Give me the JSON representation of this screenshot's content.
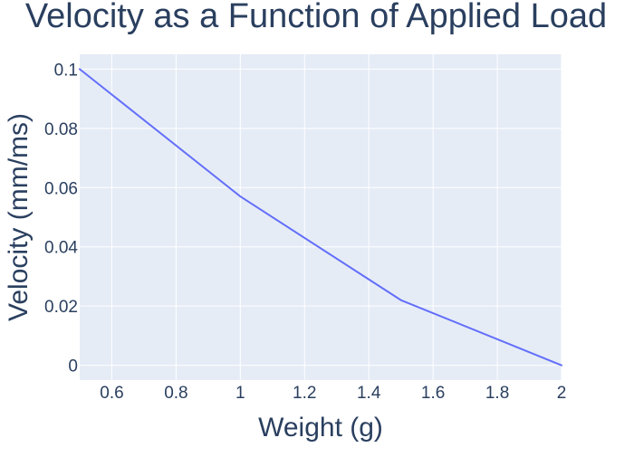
{
  "chart_data": {
    "type": "line",
    "title": "Velocity as a Function of Applied Load",
    "xlabel": "Weight (g)",
    "ylabel": "Velocity (mm/ms)",
    "x": [
      0.5,
      1,
      1.5,
      2
    ],
    "series": [
      {
        "values": [
          0.1,
          0.057,
          0.022,
          0
        ]
      }
    ],
    "xlim": [
      0.5,
      2
    ],
    "ylim": [
      -0.005,
      0.105
    ],
    "xticks": [
      0.6,
      0.8,
      1,
      1.2,
      1.4,
      1.6,
      1.8,
      2
    ],
    "xtick_labels": [
      "0.6",
      "0.8",
      "1",
      "1.2",
      "1.4",
      "1.6",
      "1.8",
      "2"
    ],
    "yticks": [
      0,
      0.02,
      0.04,
      0.06,
      0.08,
      0.1
    ],
    "ytick_labels": [
      "0",
      "0.02",
      "0.04",
      "0.06",
      "0.08",
      "0.1"
    ],
    "grid": true,
    "colors": {
      "plot_background": "#e5ecf6",
      "grid": "#ffffff",
      "line": "#636efa",
      "text": "#2a3f5f"
    }
  }
}
